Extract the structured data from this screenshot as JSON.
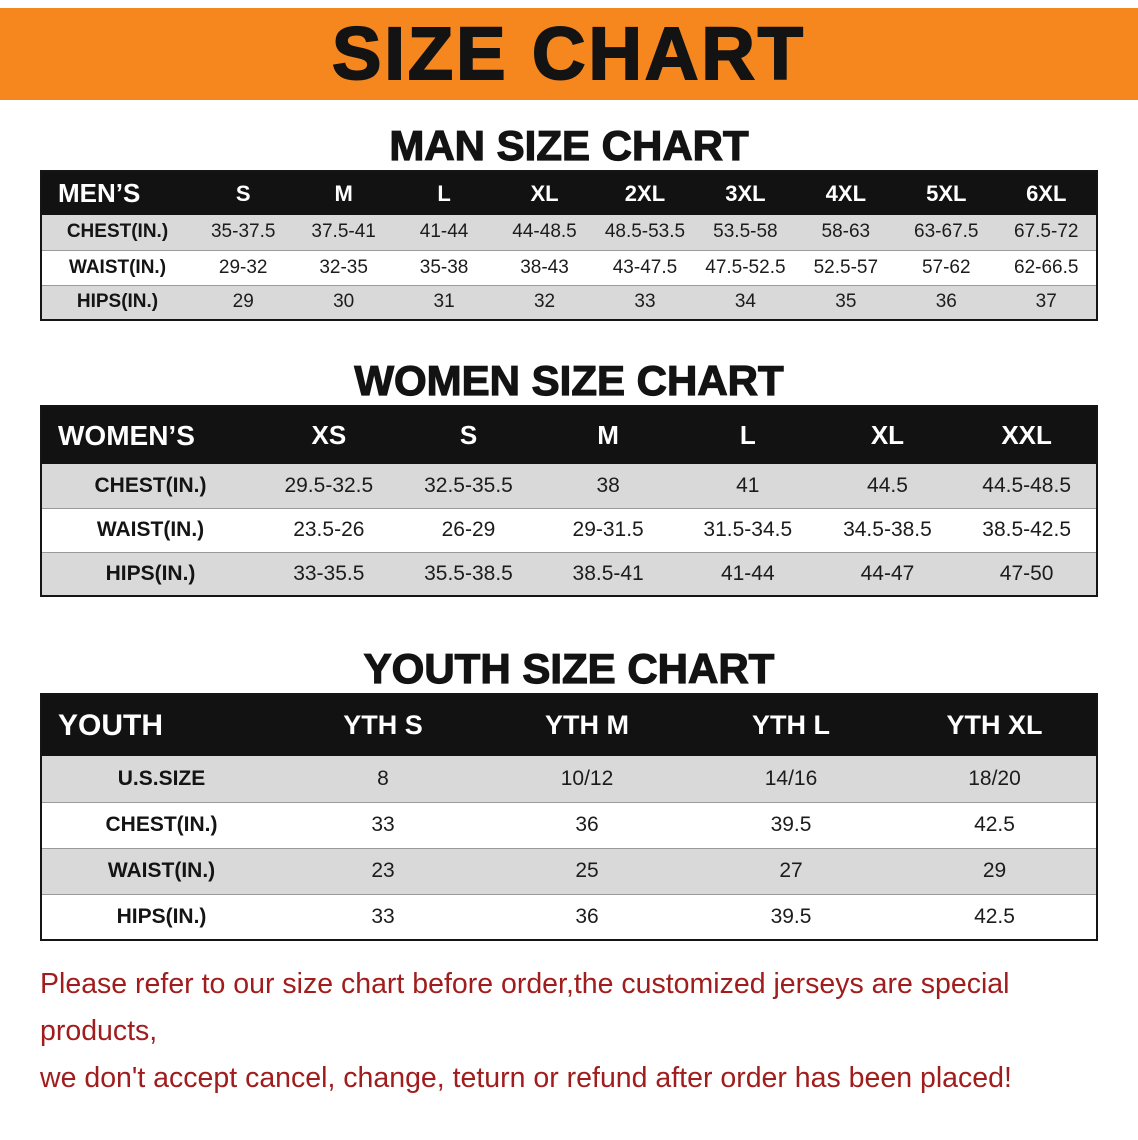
{
  "banner": {
    "title": "SIZE CHART"
  },
  "colors": {
    "banner_bg": "#f6871f",
    "table_header_bg": "#121212",
    "row_alt_gray": "#d9d9d9",
    "disclaimer_red": "#a11d1d"
  },
  "sections": [
    {
      "id": "men",
      "heading": "MAN SIZE CHART",
      "table": {
        "header": [
          "MEN’S",
          "S",
          "M",
          "L",
          "XL",
          "2XL",
          "3XL",
          "4XL",
          "5XL",
          "6XL"
        ],
        "rows": [
          [
            "CHEST(IN.)",
            "35-37.5",
            "37.5-41",
            "41-44",
            "44-48.5",
            "48.5-53.5",
            "53.5-58",
            "58-63",
            "63-67.5",
            "67.5-72"
          ],
          [
            "WAIST(IN.)",
            "29-32",
            "32-35",
            "35-38",
            "38-43",
            "43-47.5",
            "47.5-52.5",
            "52.5-57",
            "57-62",
            "62-66.5"
          ],
          [
            "HIPS(IN.)",
            "29",
            "30",
            "31",
            "32",
            "33",
            "34",
            "35",
            "36",
            "37"
          ]
        ]
      }
    },
    {
      "id": "women",
      "heading": "WOMEN SIZE CHART",
      "table": {
        "header": [
          "WOMEN’S",
          "XS",
          "S",
          "M",
          "L",
          "XL",
          "XXL"
        ],
        "rows": [
          [
            "CHEST(IN.)",
            "29.5-32.5",
            "32.5-35.5",
            "38",
            "41",
            "44.5",
            "44.5-48.5"
          ],
          [
            "WAIST(IN.)",
            "23.5-26",
            "26-29",
            "29-31.5",
            "31.5-34.5",
            "34.5-38.5",
            "38.5-42.5"
          ],
          [
            "HIPS(IN.)",
            "33-35.5",
            "35.5-38.5",
            "38.5-41",
            "41-44",
            "44-47",
            "47-50"
          ]
        ]
      }
    },
    {
      "id": "youth",
      "heading": "YOUTH SIZE CHART",
      "table": {
        "header": [
          "YOUTH",
          "YTH S",
          "YTH M",
          "YTH L",
          "YTH XL"
        ],
        "rows": [
          [
            "U.S.SIZE",
            "8",
            "10/12",
            "14/16",
            "18/20"
          ],
          [
            "CHEST(IN.)",
            "33",
            "36",
            "39.5",
            "42.5"
          ],
          [
            "WAIST(IN.)",
            "23",
            "25",
            "27",
            "29"
          ],
          [
            "HIPS(IN.)",
            "33",
            "36",
            "39.5",
            "42.5"
          ]
        ]
      }
    }
  ],
  "disclaimer": {
    "line1": "Please refer to our size chart before order,the customized jerseys are special products,",
    "line2": "we don't accept cancel, change, teturn or refund after order has been placed!"
  }
}
